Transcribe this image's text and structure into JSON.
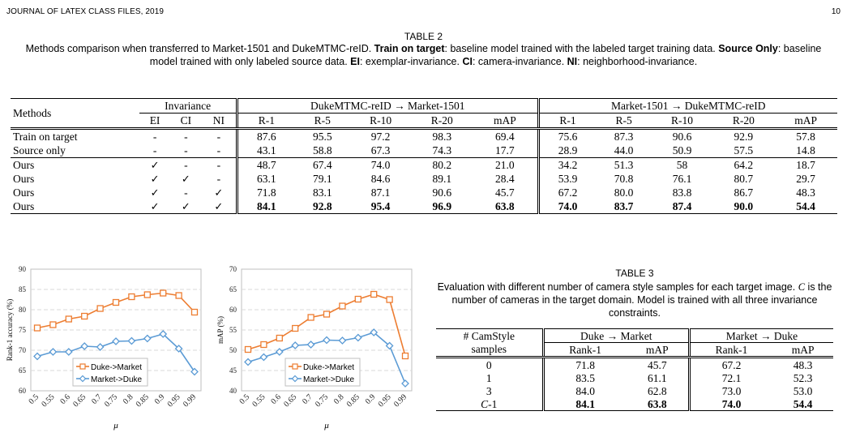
{
  "header": {
    "journal": "JOURNAL OF LATEX CLASS FILES, 2019",
    "page": "10"
  },
  "table2": {
    "title": "TABLE 2",
    "caption": [
      {
        "t": "Methods comparison when transferred to Market-1501 and DukeMTMC-reID. "
      },
      {
        "t": "Train on target",
        "b": true
      },
      {
        "t": ": baseline model trained with the labeled target training data. "
      },
      {
        "t": "Source Only",
        "b": true
      },
      {
        "t": ": baseline model trained with only labeled source data. "
      },
      {
        "t": "EI",
        "b": true
      },
      {
        "t": ": exemplar-invariance. "
      },
      {
        "t": "CI",
        "b": true
      },
      {
        "t": ": camera-invariance. "
      },
      {
        "t": "NI",
        "b": true
      },
      {
        "t": ": neighborhood-invariance."
      }
    ],
    "methods_header": "Methods",
    "invariance_header": "Invariance",
    "inv_cols": [
      "EI",
      "CI",
      "NI"
    ],
    "group1": "DukeMTMC-reID → Market-1501",
    "group2": "Market-1501 → DukeMTMC-reID",
    "metric_cols": [
      "R-1",
      "R-5",
      "R-10",
      "R-20",
      "mAP"
    ],
    "rows": [
      {
        "method": "Train on target",
        "inv": [
          "-",
          "-",
          "-"
        ],
        "g1": [
          "87.6",
          "95.5",
          "97.2",
          "98.3",
          "69.4"
        ],
        "g2": [
          "75.6",
          "87.3",
          "90.6",
          "92.9",
          "57.8"
        ]
      },
      {
        "method": "Source only",
        "inv": [
          "-",
          "-",
          "-"
        ],
        "g1": [
          "43.1",
          "58.8",
          "67.3",
          "74.3",
          "17.7"
        ],
        "g2": [
          "28.9",
          "44.0",
          "50.9",
          "57.5",
          "14.8"
        ]
      },
      {
        "method": "Ours",
        "inv": [
          "✓",
          "-",
          "-"
        ],
        "g1": [
          "48.7",
          "67.4",
          "74.0",
          "80.2",
          "21.0"
        ],
        "g2": [
          "34.2",
          "51.3",
          "58",
          "64.2",
          "18.7"
        ]
      },
      {
        "method": "Ours",
        "inv": [
          "✓",
          "✓",
          "-"
        ],
        "g1": [
          "63.1",
          "79.1",
          "84.6",
          "89.1",
          "28.4"
        ],
        "g2": [
          "53.9",
          "70.8",
          "76.1",
          "80.7",
          "29.7"
        ]
      },
      {
        "method": "Ours",
        "inv": [
          "✓",
          "-",
          "✓"
        ],
        "g1": [
          "71.8",
          "83.1",
          "87.1",
          "90.6",
          "45.7"
        ],
        "g2": [
          "67.2",
          "80.0",
          "83.8",
          "86.7",
          "48.3"
        ]
      },
      {
        "method": "Ours",
        "inv": [
          "✓",
          "✓",
          "✓"
        ],
        "g1": [
          "84.1",
          "92.8",
          "95.4",
          "96.9",
          "63.8"
        ],
        "g2": [
          "74.0",
          "83.7",
          "87.4",
          "90.0",
          "54.4"
        ],
        "bold": true
      }
    ]
  },
  "table3": {
    "title": "TABLE 3",
    "caption": "Evaluation with different number of camera style samples for each target image. C is the number of cameras in the target domain. Model is trained with all three invariance constraints.",
    "col_header_1": "# CamStyle",
    "col_header_2": "samples",
    "group1": "Duke → Market",
    "group2": "Market → Duke",
    "metric_cols": [
      "Rank-1",
      "mAP",
      "Rank-1",
      "mAP"
    ],
    "rows": [
      {
        "samples": "0",
        "vals": [
          "71.8",
          "45.7",
          "67.2",
          "48.3"
        ]
      },
      {
        "samples": "1",
        "vals": [
          "83.5",
          "61.1",
          "72.1",
          "52.3"
        ]
      },
      {
        "samples": "3",
        "vals": [
          "84.0",
          "62.8",
          "73.0",
          "53.0"
        ]
      },
      {
        "samples": "C-1",
        "vals": [
          "84.1",
          "63.8",
          "74.0",
          "54.4"
        ],
        "bold": true
      }
    ]
  },
  "chart_data": [
    {
      "type": "line",
      "ylabel": "Rank-1 accuracy (%)",
      "xlabel": "μ",
      "ylim": [
        60,
        90
      ],
      "yticks": [
        60,
        65,
        70,
        75,
        80,
        85,
        90
      ],
      "categories": [
        "0.5",
        "0.55",
        "0.6",
        "0.65",
        "0.7",
        "0.75",
        "0.8",
        "0.85",
        "0.9",
        "0.95",
        "0.99"
      ],
      "legend_position": "bottom-center",
      "grid": "horizontal dashed",
      "series": [
        {
          "name": "Duke->Market",
          "color": "#ED7D31",
          "marker": "square",
          "values": [
            75.5,
            76.3,
            77.7,
            78.4,
            80.3,
            81.8,
            83.2,
            83.7,
            84.1,
            83.5,
            79.4
          ]
        },
        {
          "name": "Market->Duke",
          "color": "#5B9BD5",
          "marker": "diamond",
          "values": [
            68.5,
            69.6,
            69.6,
            71.0,
            70.8,
            72.2,
            72.3,
            72.9,
            74.0,
            70.4,
            64.7
          ]
        }
      ]
    },
    {
      "type": "line",
      "ylabel": "mAP (%)",
      "xlabel": "μ",
      "ylim": [
        40,
        70
      ],
      "yticks": [
        40,
        45,
        50,
        55,
        60,
        65,
        70
      ],
      "categories": [
        "0.5",
        "0.55",
        "0.6",
        "0.65",
        "0.7",
        "0.75",
        "0.8",
        "0.85",
        "0.9",
        "0.95",
        "0.99"
      ],
      "legend_position": "bottom-right",
      "grid": "horizontal dashed",
      "series": [
        {
          "name": "Duke->Market",
          "color": "#ED7D31",
          "marker": "square",
          "values": [
            50.2,
            51.4,
            53.0,
            55.4,
            58.1,
            58.9,
            60.9,
            62.6,
            63.8,
            62.5,
            48.6
          ]
        },
        {
          "name": "Market->Duke",
          "color": "#5B9BD5",
          "marker": "diamond",
          "values": [
            47.1,
            48.3,
            49.6,
            51.2,
            51.4,
            52.5,
            52.4,
            53.1,
            54.4,
            51.1,
            41.8
          ]
        }
      ]
    }
  ]
}
